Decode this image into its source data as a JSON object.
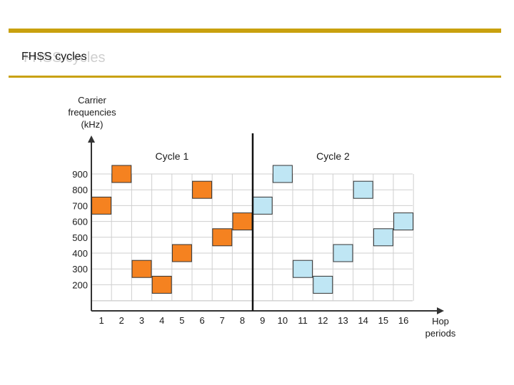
{
  "slide": {
    "title": "FHSS cycles"
  },
  "diagram": {
    "y_axis_label_lines": [
      "Carrier",
      "frequencies",
      "(kHz)"
    ],
    "x_axis_label_lines": [
      "Hop",
      "periods"
    ],
    "y_ticks": [
      "900",
      "800",
      "700",
      "600",
      "500",
      "400",
      "300",
      "200"
    ],
    "x_ticks": [
      "1",
      "2",
      "3",
      "4",
      "5",
      "6",
      "7",
      "8",
      "9",
      "10",
      "11",
      "12",
      "13",
      "14",
      "15",
      "16"
    ],
    "cycles": [
      {
        "label": "Cycle 1",
        "color": "#f58220",
        "hops": [
          {
            "period": 1,
            "freq": 700
          },
          {
            "period": 2,
            "freq": 900
          },
          {
            "period": 3,
            "freq": 300
          },
          {
            "period": 4,
            "freq": 200
          },
          {
            "period": 5,
            "freq": 400
          },
          {
            "period": 6,
            "freq": 800
          },
          {
            "period": 7,
            "freq": 500
          },
          {
            "period": 8,
            "freq": 600
          }
        ]
      },
      {
        "label": "Cycle 2",
        "color": "#bfe6f4",
        "hops": [
          {
            "period": 9,
            "freq": 700
          },
          {
            "period": 10,
            "freq": 900
          },
          {
            "period": 11,
            "freq": 300
          },
          {
            "period": 12,
            "freq": 200
          },
          {
            "period": 13,
            "freq": 400
          },
          {
            "period": 14,
            "freq": 800
          },
          {
            "period": 15,
            "freq": 500
          },
          {
            "period": 16,
            "freq": 600
          }
        ]
      }
    ],
    "colors": {
      "grid": "#cfcfcf",
      "axis": "#333333",
      "divider": "#111111",
      "box_stroke": "#333333"
    }
  }
}
